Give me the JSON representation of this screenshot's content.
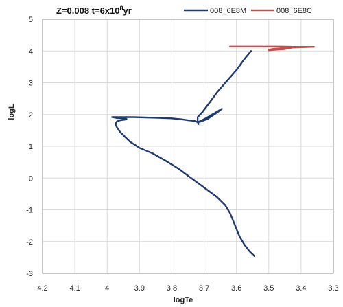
{
  "chart_data": {
    "type": "line",
    "title_main": "Z=0.008 t=6x10",
    "title_exp": "8",
    "title_tail": "yr",
    "xlabel": "logTe",
    "ylabel": "logL",
    "xlim": [
      4.2,
      3.3
    ],
    "ylim": [
      -3,
      5
    ],
    "x_reversed": true,
    "grid": true,
    "legend_position": "top-right",
    "x_ticks": [
      "4.2",
      "4.1",
      "4",
      "3.9",
      "3.8",
      "3.7",
      "3.6",
      "3.5",
      "3.4",
      "3.3"
    ],
    "y_ticks": [
      "5",
      "4",
      "3",
      "2",
      "1",
      "0",
      "-1",
      "-2",
      "-3"
    ],
    "series": [
      {
        "name": "008_6E8M",
        "color": "#1f3a6e",
        "x": [
          3.545,
          3.56,
          3.575,
          3.59,
          3.6,
          3.61,
          3.62,
          3.635,
          3.66,
          3.7,
          3.74,
          3.78,
          3.82,
          3.86,
          3.9,
          3.93,
          3.945,
          3.96,
          3.97,
          3.975,
          3.97,
          3.96,
          3.945,
          3.94,
          3.95,
          3.97,
          3.985,
          3.96,
          3.92,
          3.85,
          3.8,
          3.77,
          3.75,
          3.73,
          3.72,
          3.718,
          3.717,
          3.718,
          3.72,
          3.71,
          3.7,
          3.69,
          3.675,
          3.655,
          3.645,
          3.655,
          3.675,
          3.695,
          3.71,
          3.72,
          3.72,
          3.705,
          3.685,
          3.66,
          3.63,
          3.6,
          3.575,
          3.555
        ],
        "y": [
          -2.45,
          -2.3,
          -2.1,
          -1.85,
          -1.6,
          -1.35,
          -1.1,
          -0.85,
          -0.6,
          -0.3,
          0.0,
          0.3,
          0.55,
          0.78,
          0.95,
          1.15,
          1.3,
          1.45,
          1.6,
          1.7,
          1.78,
          1.82,
          1.84,
          1.86,
          1.88,
          1.89,
          1.92,
          1.92,
          1.92,
          1.9,
          1.88,
          1.85,
          1.82,
          1.8,
          1.76,
          1.72,
          1.7,
          1.72,
          1.76,
          1.78,
          1.82,
          1.86,
          1.96,
          2.1,
          2.18,
          2.12,
          2.0,
          1.88,
          1.8,
          1.76,
          1.92,
          2.08,
          2.35,
          2.7,
          3.05,
          3.4,
          3.75,
          4.0
        ]
      },
      {
        "name": "008_6E8C",
        "color": "#c0504d",
        "x": [
          3.62,
          3.58,
          3.54,
          3.5,
          3.46,
          3.42,
          3.38,
          3.36,
          3.39,
          3.42,
          3.45,
          3.47,
          3.49,
          3.5,
          3.5,
          3.48,
          3.45,
          3.43
        ],
        "y": [
          4.14,
          4.14,
          4.14,
          4.14,
          4.14,
          4.13,
          4.13,
          4.13,
          4.12,
          4.11,
          4.1,
          4.08,
          4.06,
          4.04,
          4.02,
          4.04,
          4.06,
          4.1
        ]
      }
    ]
  }
}
